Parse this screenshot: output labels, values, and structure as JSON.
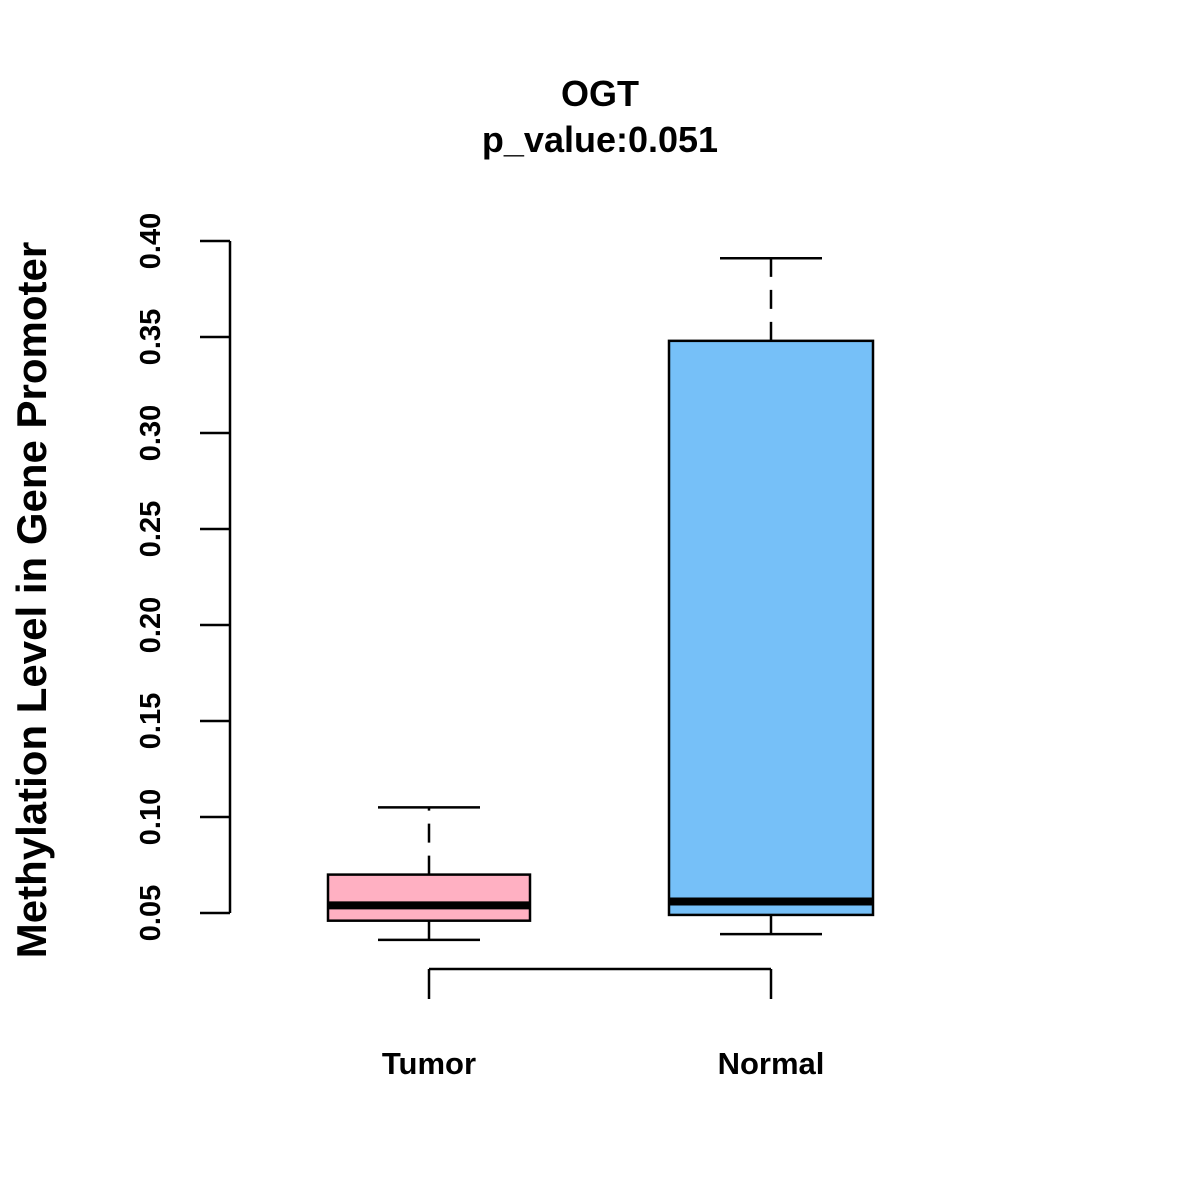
{
  "chart_data": {
    "type": "box",
    "title": "OGT",
    "subtitle": "p_value:0.051",
    "xlabel": "",
    "ylabel": "Methylation Level in Gene Promoter",
    "categories": [
      "Tumor",
      "Normal"
    ],
    "yticks": [
      "0.05",
      "0.10",
      "0.15",
      "0.20",
      "0.25",
      "0.30",
      "0.35",
      "0.40"
    ],
    "yticks_values": [
      0.05,
      0.1,
      0.15,
      0.2,
      0.25,
      0.3,
      0.35,
      0.4
    ],
    "ylim": [
      0.05,
      0.4
    ],
    "boxes": [
      {
        "name": "Tumor",
        "whisker_low": 0.036,
        "q1": 0.046,
        "median": 0.054,
        "q3": 0.07,
        "whisker_high": 0.105,
        "color": "#ffb0c2"
      },
      {
        "name": "Normal",
        "whisker_low": 0.039,
        "q1": 0.049,
        "median": 0.056,
        "q3": 0.348,
        "whisker_high": 0.391,
        "color": "#76c0f8"
      }
    ],
    "grid": false,
    "legend": "none"
  }
}
